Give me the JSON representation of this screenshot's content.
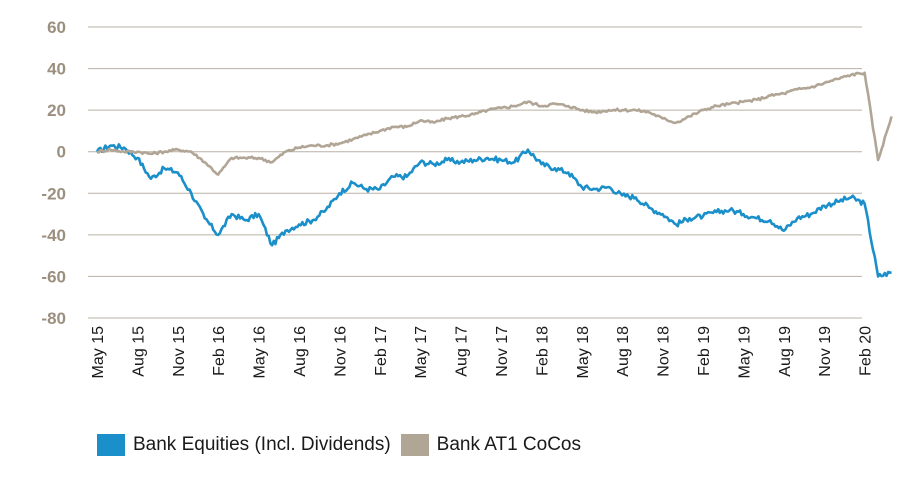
{
  "chart_data": {
    "type": "line",
    "y_ticks": [
      "60",
      "40",
      "20",
      "0",
      "-20",
      "-40",
      "-60",
      "-80"
    ],
    "ylim": [
      -80,
      60
    ],
    "x_ticks": [
      "May 15",
      "Aug 15",
      "Nov 15",
      "Feb 16",
      "May 16",
      "Aug 16",
      "Nov 16",
      "Feb 17",
      "May 17",
      "Aug 17",
      "Nov 17",
      "Feb 18",
      "May 18",
      "Aug 18",
      "Nov 18",
      "Feb 19",
      "May 19",
      "Aug 19",
      "Nov 19",
      "Feb 20"
    ],
    "grid": "horizontal",
    "legend_position": "bottom",
    "series": [
      {
        "name": "Bank Equities (Incl. Dividends)",
        "color": "#1a8fc9",
        "points": [
          [
            "May 15",
            0
          ],
          [
            "Jun 15",
            3
          ],
          [
            "Jul 15",
            2
          ],
          [
            "Aug 15",
            -3
          ],
          [
            "Sep 15",
            -13
          ],
          [
            "Oct 15",
            -8
          ],
          [
            "Nov 15",
            -10
          ],
          [
            "Dec 15",
            -20
          ],
          [
            "Jan 16",
            -32
          ],
          [
            "Feb 16",
            -40
          ],
          [
            "Mar 16",
            -30
          ],
          [
            "Apr 16",
            -33
          ],
          [
            "May 16",
            -30
          ],
          [
            "Jun 16",
            -45
          ],
          [
            "Jul 16",
            -38
          ],
          [
            "Aug 16",
            -35
          ],
          [
            "Sep 16",
            -33
          ],
          [
            "Oct 16",
            -28
          ],
          [
            "Nov 16",
            -20
          ],
          [
            "Dec 16",
            -15
          ],
          [
            "Jan 17",
            -18
          ],
          [
            "Feb 17",
            -18
          ],
          [
            "Mar 17",
            -12
          ],
          [
            "Apr 17",
            -12
          ],
          [
            "May 17",
            -5
          ],
          [
            "Jun 17",
            -6
          ],
          [
            "Jul 17",
            -4
          ],
          [
            "Aug 17",
            -5
          ],
          [
            "Sep 17",
            -4
          ],
          [
            "Oct 17",
            -3
          ],
          [
            "Nov 17",
            -4
          ],
          [
            "Dec 17",
            -5
          ],
          [
            "Jan 18",
            1
          ],
          [
            "Feb 18",
            -6
          ],
          [
            "Mar 18",
            -8
          ],
          [
            "Apr 18",
            -10
          ],
          [
            "May 18",
            -17
          ],
          [
            "Jun 18",
            -18
          ],
          [
            "Jul 18",
            -17
          ],
          [
            "Aug 18",
            -21
          ],
          [
            "Sep 18",
            -22
          ],
          [
            "Oct 18",
            -27
          ],
          [
            "Nov 18",
            -30
          ],
          [
            "Dec 18",
            -35
          ],
          [
            "Jan 19",
            -32
          ],
          [
            "Feb 19",
            -31
          ],
          [
            "Mar 19",
            -29
          ],
          [
            "Apr 19",
            -28
          ],
          [
            "May 19",
            -30
          ],
          [
            "Jun 19",
            -32
          ],
          [
            "Jul 19",
            -33
          ],
          [
            "Aug 19",
            -38
          ],
          [
            "Sep 19",
            -32
          ],
          [
            "Oct 19",
            -30
          ],
          [
            "Nov 19",
            -26
          ],
          [
            "Dec 19",
            -24
          ],
          [
            "Jan 20",
            -22
          ],
          [
            "Feb 20",
            -25
          ],
          [
            "Mar 20",
            -60
          ],
          [
            "Apr 20",
            -58
          ]
        ]
      },
      {
        "name": "Bank AT1 CoCos",
        "color": "#b1a596",
        "points": [
          [
            "May 15",
            0
          ],
          [
            "Jun 15",
            1
          ],
          [
            "Jul 15",
            0
          ],
          [
            "Aug 15",
            0
          ],
          [
            "Sep 15",
            -1
          ],
          [
            "Oct 15",
            0
          ],
          [
            "Nov 15",
            1
          ],
          [
            "Dec 15",
            0
          ],
          [
            "Jan 16",
            -5
          ],
          [
            "Feb 16",
            -11
          ],
          [
            "Mar 16",
            -3
          ],
          [
            "Apr 16",
            -3
          ],
          [
            "May 16",
            -3
          ],
          [
            "Jun 16",
            -5
          ],
          [
            "Jul 16",
            0
          ],
          [
            "Aug 16",
            2
          ],
          [
            "Sep 16",
            3
          ],
          [
            "Oct 16",
            3
          ],
          [
            "Nov 16",
            4
          ],
          [
            "Dec 16",
            6
          ],
          [
            "Jan 17",
            8
          ],
          [
            "Feb 17",
            10
          ],
          [
            "Mar 17",
            12
          ],
          [
            "Apr 17",
            12
          ],
          [
            "May 17",
            15
          ],
          [
            "Jun 17",
            14
          ],
          [
            "Jul 17",
            16
          ],
          [
            "Aug 17",
            17
          ],
          [
            "Sep 17",
            18
          ],
          [
            "Oct 17",
            20
          ],
          [
            "Nov 17",
            21
          ],
          [
            "Dec 17",
            22
          ],
          [
            "Jan 18",
            24
          ],
          [
            "Feb 18",
            22
          ],
          [
            "Mar 18",
            23
          ],
          [
            "Apr 18",
            22
          ],
          [
            "May 18",
            20
          ],
          [
            "Jun 18",
            19
          ],
          [
            "Jul 18",
            20
          ],
          [
            "Aug 18",
            20
          ],
          [
            "Sep 18",
            20
          ],
          [
            "Oct 18",
            19
          ],
          [
            "Nov 18",
            16
          ],
          [
            "Dec 18",
            14
          ],
          [
            "Jan 19",
            17
          ],
          [
            "Feb 19",
            20
          ],
          [
            "Mar 19",
            22
          ],
          [
            "Apr 19",
            23
          ],
          [
            "May 19",
            24
          ],
          [
            "Jun 19",
            25
          ],
          [
            "Jul 19",
            27
          ],
          [
            "Aug 19",
            28
          ],
          [
            "Sep 19",
            30
          ],
          [
            "Oct 19",
            31
          ],
          [
            "Nov 19",
            33
          ],
          [
            "Dec 19",
            35
          ],
          [
            "Jan 20",
            37
          ],
          [
            "Feb 20",
            38
          ],
          [
            "Mar 20",
            -4
          ],
          [
            "Apr 20",
            17
          ]
        ]
      }
    ]
  }
}
